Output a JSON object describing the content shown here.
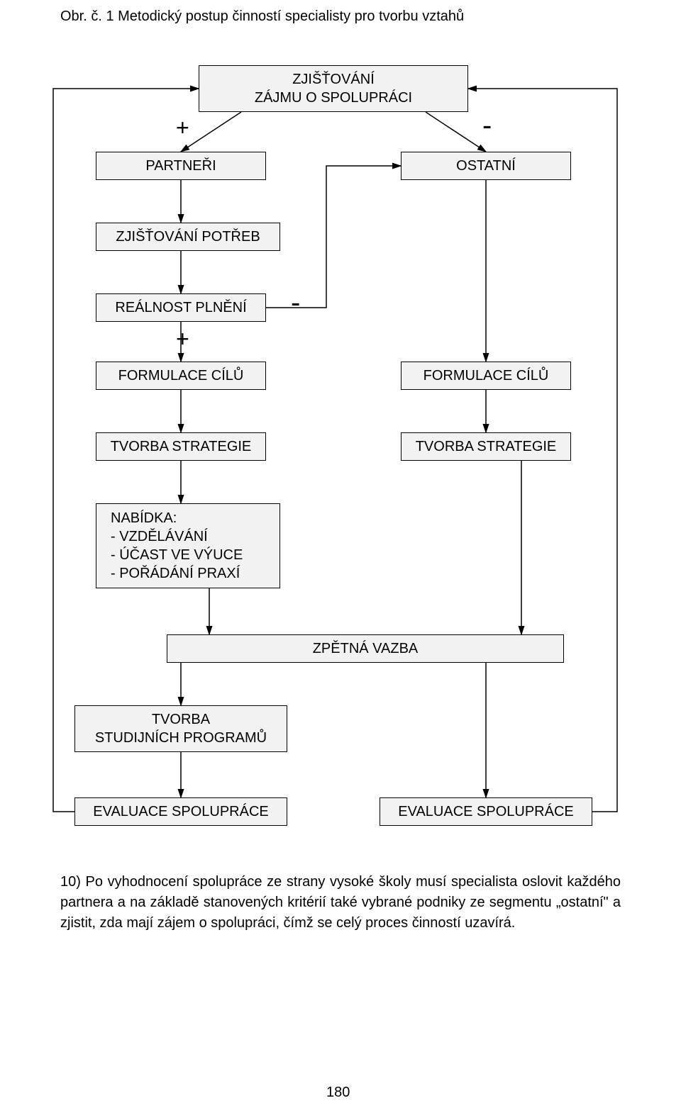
{
  "caption": "Obr. č. 1 Metodický postup činností specialisty pro tvorbu vztahů",
  "boxes": {
    "zjistovani_zajmu": "ZJIŠŤOVÁNÍ\nZÁJMU O SPOLUPRÁCI",
    "partneri": "PARTNEŘI",
    "ostatni": "OSTATNÍ",
    "zjistovani_potreb": "ZJIŠŤOVÁNÍ POTŘEB",
    "realnost_plneni": "REÁLNOST PLNĚNÍ",
    "formulace_cilu_l": "FORMULACE CÍLŮ",
    "formulace_cilu_r": "FORMULACE CÍLŮ",
    "tvorba_strategie_l": "TVORBA STRATEGIE",
    "tvorba_strategie_r": "TVORBA STRATEGIE",
    "nabidka": "NABÍDKA:\n- VZDĚLÁVÁNÍ\n- ÚČAST VE VÝUCE\n- POŘÁDÁNÍ PRAXÍ",
    "zpetna_vazba": "ZPĚTNÁ VAZBA",
    "tvorba_studijnich": "TVORBA\nSTUDIJNÍCH PROGRAMŮ",
    "evaluace_l": "EVALUACE SPOLUPRÁCE",
    "evaluace_r": "EVALUACE SPOLUPRÁCE"
  },
  "symbols": {
    "plus_top": "+",
    "minus_top": "-",
    "minus_realnost": "-",
    "plus_realnost": "+"
  },
  "paragraph": "10) Po vyhodnocení spolupráce ze strany vysoké školy musí specialista oslovit každého partnera a na základě stanovených kritérií také vybrané podniky ze segmentu „ostatní\" a zjistit, zda mají zájem o spolupráci, čímž se celý proces činností uzavírá.",
  "pagenum": "180",
  "style": {
    "box_bg": "#f2f2f2",
    "box_border": "#000000",
    "line_color": "#000000",
    "font_body": 20,
    "font_sym": 32
  }
}
